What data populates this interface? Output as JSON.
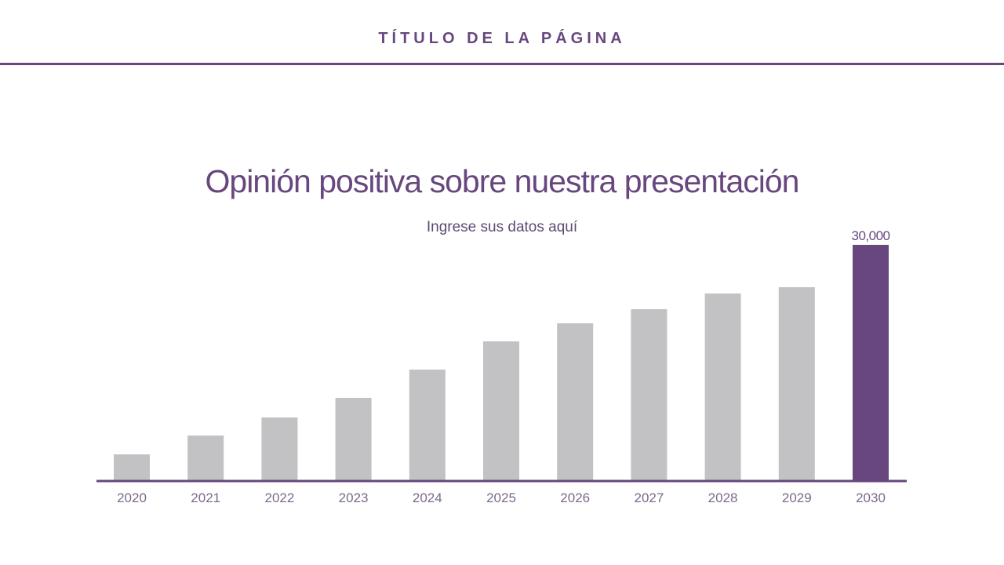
{
  "header": {
    "title": "TÍTULO DE LA PÁGINA"
  },
  "colors": {
    "accent": "#67477e",
    "bar": "#c2c1c3",
    "highlight": "#67477e",
    "tick": "#7a6a8c"
  },
  "chart_data": {
    "type": "bar",
    "title": "Opinión positiva sobre nuestra presentación",
    "subtitle": "Ingrese sus datos aquí",
    "categories": [
      "2020",
      "2021",
      "2022",
      "2023",
      "2024",
      "2025",
      "2026",
      "2027",
      "2028",
      "2029",
      "2030"
    ],
    "values": [
      3300,
      5700,
      8000,
      10500,
      14100,
      17700,
      20000,
      21800,
      23800,
      24600,
      30000
    ],
    "highlight_index": 10,
    "data_labels": {
      "2030": "30,000"
    },
    "ylim": [
      0,
      30000
    ],
    "grid": false,
    "xlabel": "",
    "ylabel": ""
  }
}
